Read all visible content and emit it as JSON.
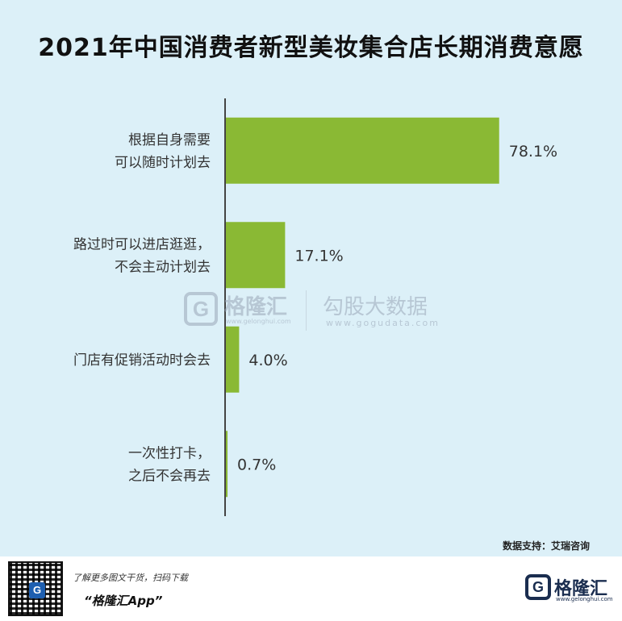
{
  "title": "2021年中国消费者新型美妆集合店长期消费意愿",
  "chart_data": {
    "type": "bar",
    "orientation": "horizontal",
    "categories": [
      [
        "根据自身需要",
        "可以随时计划去"
      ],
      [
        "路过时可以进店逛逛，",
        "不会主动计划去"
      ],
      [
        "门店有促销活动时会去"
      ],
      [
        "一次性打卡，",
        "之后不会再去"
      ]
    ],
    "values": [
      78.1,
      17.1,
      4.0,
      0.7
    ],
    "value_labels": [
      "78.1%",
      "17.1%",
      "4.0%",
      "0.7%"
    ],
    "bar_color": "#8ab934",
    "xlim": [
      0,
      100
    ],
    "grid": false,
    "legend": "none"
  },
  "watermark": {
    "logo_letter": "G",
    "name": "格隆汇",
    "url": "www.gelonghui.com",
    "name2": "勾股大数据",
    "url2": "www.gogudata.com"
  },
  "source": "数据支持：艾瑞咨询",
  "footer": {
    "line1": "了解更多图文干货，扫码下载",
    "line2": "“格隆汇App”",
    "qr_letter": "G",
    "brand_letter": "G",
    "brand_name": "格隆汇",
    "brand_url": "www.gelonghui.com"
  },
  "colors": {
    "background": "#dcf0f8",
    "bar": "#8ab934",
    "axis": "#444444"
  }
}
